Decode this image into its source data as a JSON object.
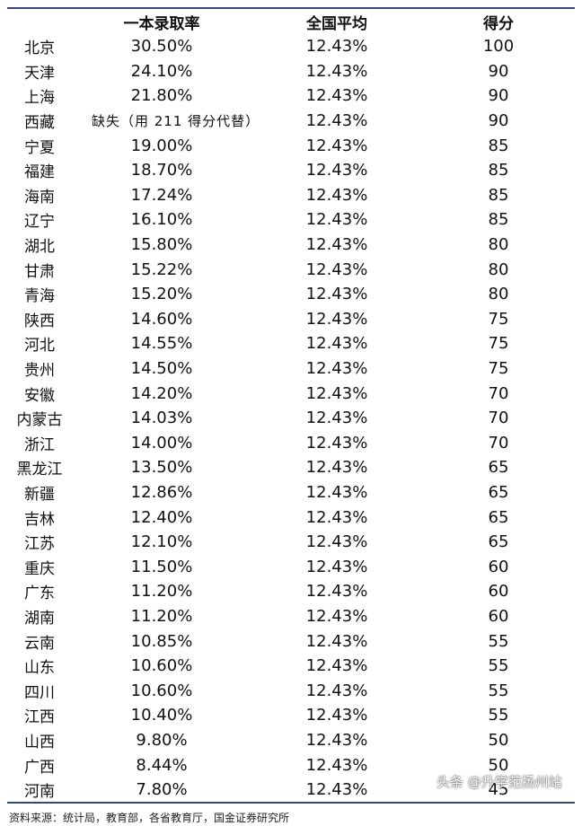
{
  "table": {
    "headers": [
      "",
      "一本录取率",
      "全国平均",
      "得分"
    ],
    "rows": [
      {
        "province": "北京",
        "rate": "30.50%",
        "avg": "12.43%",
        "score": "100"
      },
      {
        "province": "天津",
        "rate": "24.10%",
        "avg": "12.43%",
        "score": "90"
      },
      {
        "province": "上海",
        "rate": "21.80%",
        "avg": "12.43%",
        "score": "90"
      },
      {
        "province": "西藏",
        "rate": "缺失（用 211 得分代替）",
        "avg": "12.43%",
        "score": "90"
      },
      {
        "province": "宁夏",
        "rate": "19.00%",
        "avg": "12.43%",
        "score": "85"
      },
      {
        "province": "福建",
        "rate": "18.70%",
        "avg": "12.43%",
        "score": "85"
      },
      {
        "province": "海南",
        "rate": "17.24%",
        "avg": "12.43%",
        "score": "85"
      },
      {
        "province": "辽宁",
        "rate": "16.10%",
        "avg": "12.43%",
        "score": "85"
      },
      {
        "province": "湖北",
        "rate": "15.80%",
        "avg": "12.43%",
        "score": "80"
      },
      {
        "province": "甘肃",
        "rate": "15.22%",
        "avg": "12.43%",
        "score": "80"
      },
      {
        "province": "青海",
        "rate": "15.20%",
        "avg": "12.43%",
        "score": "80"
      },
      {
        "province": "陕西",
        "rate": "14.60%",
        "avg": "12.43%",
        "score": "75"
      },
      {
        "province": "河北",
        "rate": "14.55%",
        "avg": "12.43%",
        "score": "75"
      },
      {
        "province": "贵州",
        "rate": "14.50%",
        "avg": "12.43%",
        "score": "75"
      },
      {
        "province": "安徽",
        "rate": "14.20%",
        "avg": "12.43%",
        "score": "70"
      },
      {
        "province": "内蒙古",
        "rate": "14.03%",
        "avg": "12.43%",
        "score": "70"
      },
      {
        "province": "浙江",
        "rate": "14.00%",
        "avg": "12.43%",
        "score": "70"
      },
      {
        "province": "黑龙江",
        "rate": "13.50%",
        "avg": "12.43%",
        "score": "65"
      },
      {
        "province": "新疆",
        "rate": "12.86%",
        "avg": "12.43%",
        "score": "65"
      },
      {
        "province": "吉林",
        "rate": "12.40%",
        "avg": "12.43%",
        "score": "65"
      },
      {
        "province": "江苏",
        "rate": "12.10%",
        "avg": "12.43%",
        "score": "65"
      },
      {
        "province": "重庆",
        "rate": "11.50%",
        "avg": "12.43%",
        "score": "60"
      },
      {
        "province": "广东",
        "rate": "11.20%",
        "avg": "12.43%",
        "score": "60"
      },
      {
        "province": "湖南",
        "rate": "11.20%",
        "avg": "12.43%",
        "score": "60"
      },
      {
        "province": "云南",
        "rate": "10.85%",
        "avg": "12.43%",
        "score": "55"
      },
      {
        "province": "山东",
        "rate": "10.60%",
        "avg": "12.43%",
        "score": "55"
      },
      {
        "province": "四川",
        "rate": "10.60%",
        "avg": "12.43%",
        "score": "55"
      },
      {
        "province": "江西",
        "rate": "10.40%",
        "avg": "12.43%",
        "score": "55"
      },
      {
        "province": "山西",
        "rate": "9.80%",
        "avg": "12.43%",
        "score": "50"
      },
      {
        "province": "广西",
        "rate": "8.44%",
        "avg": "12.43%",
        "score": "50"
      },
      {
        "province": "河南",
        "rate": "7.80%",
        "avg": "12.43%",
        "score": "45"
      }
    ]
  },
  "source": "资料来源：统计局，教育部，各省教育厅，国金证券研究所",
  "watermark": "头条 @升学范扬州站",
  "colors": {
    "rule": "#2f4a7a",
    "text": "#111111"
  }
}
